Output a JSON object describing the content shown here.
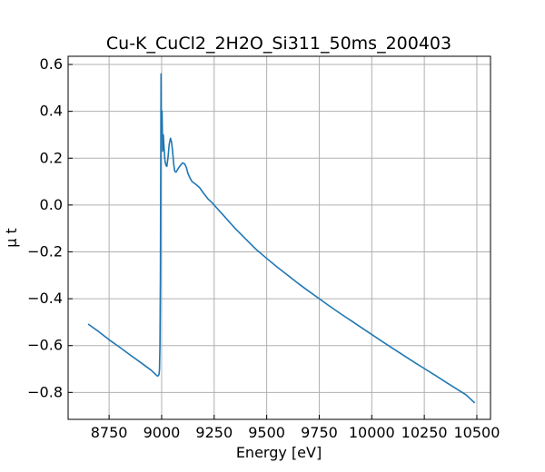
{
  "chart_data": {
    "type": "line",
    "title": "Cu-K_CuCl2_2H2O_Si311_50ms_200403",
    "xlabel": "Energy [eV]",
    "ylabel": "μ t",
    "xlim": [
      8555,
      10565
    ],
    "ylim": [
      -0.915,
      0.635
    ],
    "xticks": [
      8750,
      9000,
      9250,
      9500,
      9750,
      10000,
      10250,
      10500
    ],
    "xtick_labels": [
      "8750",
      "9000",
      "9250",
      "9500",
      "9750",
      "10000",
      "10250",
      "10500"
    ],
    "yticks": [
      -0.8,
      -0.6,
      -0.4,
      -0.2,
      0.0,
      0.2,
      0.4,
      0.6
    ],
    "ytick_labels": [
      "−0.8",
      "−0.6",
      "−0.4",
      "−0.2",
      "0.0",
      "0.2",
      "0.4",
      "0.6"
    ],
    "grid": true,
    "series": [
      {
        "color": "#1f77b4",
        "x": [
          8650,
          8700,
          8750,
          8800,
          8850,
          8900,
          8950,
          8970,
          8980,
          8985,
          8988,
          8990,
          8992,
          8994,
          8995,
          8997,
          8999,
          9002,
          9005,
          9008,
          9012,
          9016,
          9020,
          9025,
          9030,
          9036,
          9042,
          9047,
          9052,
          9057,
          9062,
          9068,
          9075,
          9082,
          9090,
          9100,
          9110,
          9118,
          9125,
          9135,
          9145,
          9160,
          9180,
          9200,
          9220,
          9240,
          9260,
          9300,
          9350,
          9400,
          9450,
          9500,
          9550,
          9600,
          9650,
          9700,
          9750,
          9800,
          9850,
          9900,
          9950,
          10000,
          10050,
          10100,
          10150,
          10200,
          10250,
          10300,
          10350,
          10400,
          10450,
          10490
        ],
        "y": [
          -0.508,
          -0.54,
          -0.575,
          -0.607,
          -0.64,
          -0.672,
          -0.705,
          -0.722,
          -0.73,
          -0.728,
          -0.72,
          -0.7,
          -0.6,
          -0.3,
          -0.02,
          0.56,
          0.32,
          0.4,
          0.23,
          0.3,
          0.24,
          0.19,
          0.17,
          0.165,
          0.2,
          0.26,
          0.285,
          0.27,
          0.23,
          0.18,
          0.145,
          0.14,
          0.15,
          0.16,
          0.17,
          0.18,
          0.175,
          0.16,
          0.135,
          0.115,
          0.1,
          0.09,
          0.075,
          0.05,
          0.027,
          0.01,
          -0.01,
          -0.05,
          -0.1,
          -0.145,
          -0.19,
          -0.228,
          -0.265,
          -0.3,
          -0.335,
          -0.368,
          -0.4,
          -0.432,
          -0.463,
          -0.493,
          -0.523,
          -0.553,
          -0.583,
          -0.612,
          -0.641,
          -0.67,
          -0.698,
          -0.726,
          -0.755,
          -0.783,
          -0.811,
          -0.845
        ]
      }
    ]
  }
}
